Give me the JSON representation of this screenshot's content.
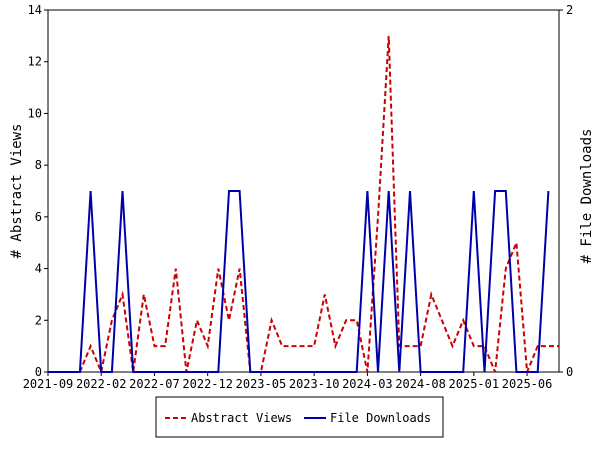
{
  "chart_data": {
    "type": "line",
    "grid": false,
    "legend_placement": "bottom-center",
    "x_axis": {
      "tick_labels": [
        "2021-09",
        "2022-02",
        "2022-07",
        "2022-12",
        "2023-05",
        "2023-10",
        "2024-03",
        "2024-08",
        "2025-01",
        "2025-06"
      ]
    },
    "y_left": {
      "label": "# Abstract Views",
      "range": [
        0,
        14
      ],
      "ticks": [
        0,
        2,
        4,
        6,
        8,
        10,
        12,
        14
      ]
    },
    "y_right": {
      "label": "# File Downloads",
      "range": [
        0,
        2
      ],
      "ticks": [
        0,
        2
      ]
    },
    "series": [
      {
        "name": "Abstract Views",
        "axis": "left",
        "color": "#cc0000",
        "style": "dashed",
        "points": [
          [
            "2021-09",
            0
          ],
          [
            "2021-10",
            0
          ],
          [
            "2021-11",
            0
          ],
          [
            "2021-12",
            0
          ],
          [
            "2022-01",
            1
          ],
          [
            "2022-02",
            0
          ],
          [
            "2022-03",
            2
          ],
          [
            "2022-04",
            3
          ],
          [
            "2022-05",
            0
          ],
          [
            "2022-06",
            3
          ],
          [
            "2022-07",
            1
          ],
          [
            "2022-08",
            1
          ],
          [
            "2022-09",
            4
          ],
          [
            "2022-10",
            0
          ],
          [
            "2022-11",
            2
          ],
          [
            "2022-12",
            1
          ],
          [
            "2023-01",
            4
          ],
          [
            "2023-02",
            2
          ],
          [
            "2023-03",
            4
          ],
          [
            "2023-04",
            0
          ],
          [
            "2023-05",
            0
          ],
          [
            "2023-06",
            2
          ],
          [
            "2023-07",
            1
          ],
          [
            "2023-08",
            1
          ],
          [
            "2023-09",
            1
          ],
          [
            "2023-10",
            1
          ],
          [
            "2023-11",
            3
          ],
          [
            "2023-12",
            1
          ],
          [
            "2024-01",
            2
          ],
          [
            "2024-02",
            2
          ],
          [
            "2024-03",
            0
          ],
          [
            "2024-04",
            6
          ],
          [
            "2024-05",
            13
          ],
          [
            "2024-06",
            1
          ],
          [
            "2024-07",
            1
          ],
          [
            "2024-08",
            1
          ],
          [
            "2024-09",
            3
          ],
          [
            "2024-10",
            2
          ],
          [
            "2024-11",
            1
          ],
          [
            "2024-12",
            2
          ],
          [
            "2025-01",
            1
          ],
          [
            "2025-02",
            1
          ],
          [
            "2025-03",
            0
          ],
          [
            "2025-04",
            4
          ],
          [
            "2025-05",
            5
          ],
          [
            "2025-06",
            0
          ],
          [
            "2025-07",
            1
          ],
          [
            "2025-08",
            1
          ],
          [
            "2025-09",
            1
          ]
        ]
      },
      {
        "name": "File Downloads",
        "axis": "right",
        "color": "#0000aa",
        "style": "solid",
        "points": [
          [
            "2021-09",
            0
          ],
          [
            "2021-10",
            0
          ],
          [
            "2021-11",
            0
          ],
          [
            "2021-12",
            0
          ],
          [
            "2022-01",
            1
          ],
          [
            "2022-02",
            0
          ],
          [
            "2022-03",
            0
          ],
          [
            "2022-04",
            1
          ],
          [
            "2022-05",
            0
          ],
          [
            "2022-06",
            0
          ],
          [
            "2022-07",
            0
          ],
          [
            "2022-08",
            0
          ],
          [
            "2022-09",
            0
          ],
          [
            "2022-10",
            0
          ],
          [
            "2022-11",
            0
          ],
          [
            "2022-12",
            0
          ],
          [
            "2023-01",
            0
          ],
          [
            "2023-02",
            1
          ],
          [
            "2023-03",
            1
          ],
          [
            "2023-04",
            0
          ],
          [
            "2023-05",
            0
          ],
          [
            "2023-06",
            0
          ],
          [
            "2023-07",
            0
          ],
          [
            "2023-08",
            0
          ],
          [
            "2023-09",
            0
          ],
          [
            "2023-10",
            0
          ],
          [
            "2023-11",
            0
          ],
          [
            "2023-12",
            0
          ],
          [
            "2024-01",
            0
          ],
          [
            "2024-02",
            0
          ],
          [
            "2024-03",
            1
          ],
          [
            "2024-04",
            0
          ],
          [
            "2024-05",
            1
          ],
          [
            "2024-06",
            0
          ],
          [
            "2024-07",
            1
          ],
          [
            "2024-08",
            0
          ],
          [
            "2024-09",
            0
          ],
          [
            "2024-10",
            0
          ],
          [
            "2024-11",
            0
          ],
          [
            "2024-12",
            0
          ],
          [
            "2025-01",
            1
          ],
          [
            "2025-02",
            0
          ],
          [
            "2025-03",
            1
          ],
          [
            "2025-04",
            1
          ],
          [
            "2025-05",
            0
          ],
          [
            "2025-06",
            0
          ],
          [
            "2025-07",
            0
          ],
          [
            "2025-08",
            1
          ]
        ]
      }
    ]
  }
}
